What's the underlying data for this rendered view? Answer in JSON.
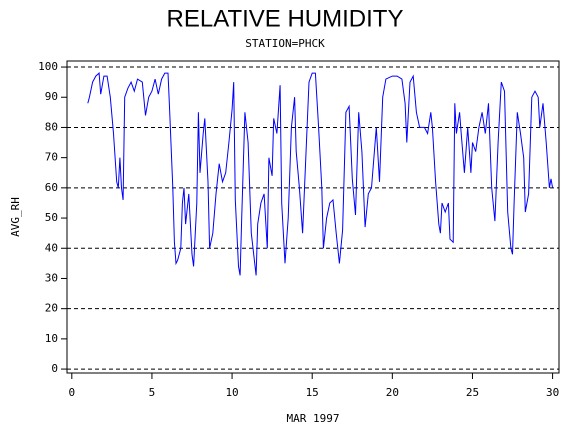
{
  "chart_data": {
    "type": "line",
    "title": "RELATIVE HUMIDITY",
    "subtitle": "STATION=PHCK",
    "x_label": "MAR 1997",
    "y_label": "AVG_RH",
    "xlim": [
      -0.3,
      30.4
    ],
    "ylim": [
      -1.3,
      102
    ],
    "xticks": [
      0,
      5,
      10,
      15,
      20,
      25,
      30
    ],
    "yticks": [
      0,
      10,
      20,
      30,
      40,
      50,
      60,
      70,
      80,
      90,
      100
    ],
    "ygrid": [
      0,
      20,
      40,
      60,
      80,
      100
    ],
    "x": [
      1.0,
      1.1,
      1.3,
      1.5,
      1.7,
      1.8,
      2.0,
      2.2,
      2.4,
      2.6,
      2.8,
      2.9,
      3.0,
      3.1,
      3.2,
      3.3,
      3.5,
      3.7,
      3.9,
      4.1,
      4.4,
      4.6,
      4.8,
      5.0,
      5.2,
      5.4,
      5.6,
      5.8,
      6.0,
      6.1,
      6.3,
      6.4,
      6.5,
      6.6,
      6.8,
      6.9,
      7.0,
      7.1,
      7.3,
      7.5,
      7.6,
      7.8,
      7.9,
      8.0,
      8.2,
      8.3,
      8.5,
      8.6,
      8.8,
      9.0,
      9.2,
      9.4,
      9.6,
      9.8,
      10.0,
      10.1,
      10.2,
      10.4,
      10.5,
      10.6,
      10.8,
      11.0,
      11.2,
      11.5,
      11.6,
      11.8,
      12.0,
      12.2,
      12.3,
      12.5,
      12.6,
      12.8,
      13.0,
      13.1,
      13.3,
      13.5,
      13.7,
      13.9,
      14.0,
      14.2,
      14.4,
      14.6,
      14.8,
      15.0,
      15.2,
      15.4,
      15.6,
      15.7,
      15.9,
      16.1,
      16.3,
      16.5,
      16.7,
      16.9,
      17.1,
      17.3,
      17.5,
      17.7,
      17.9,
      18.1,
      18.3,
      18.5,
      18.7,
      19.0,
      19.2,
      19.4,
      19.6,
      20.0,
      20.3,
      20.6,
      20.8,
      20.9,
      21.1,
      21.3,
      21.5,
      21.7,
      22.0,
      22.2,
      22.4,
      22.5,
      22.7,
      22.9,
      23.0,
      23.1,
      23.3,
      23.5,
      23.6,
      23.8,
      23.9,
      24.0,
      24.2,
      24.3,
      24.5,
      24.7,
      24.9,
      25.0,
      25.2,
      25.4,
      25.6,
      25.8,
      26.0,
      26.2,
      26.4,
      26.6,
      26.8,
      27.0,
      27.2,
      27.4,
      27.5,
      27.6,
      27.8,
      28.0,
      28.2,
      28.3,
      28.5,
      28.7,
      28.9,
      29.1,
      29.2,
      29.4,
      29.6,
      29.8,
      29.9,
      30.0
    ],
    "series": [
      {
        "color": "#0000ff",
        "values": [
          88,
          90,
          95,
          97,
          98,
          91,
          97,
          97,
          90,
          78,
          62,
          60,
          70,
          60,
          56,
          90,
          93,
          95,
          92,
          96,
          95,
          84,
          90,
          92,
          96,
          91,
          96,
          98,
          98,
          86,
          60,
          42,
          35,
          36,
          40,
          55,
          60,
          48,
          58,
          38,
          34,
          55,
          85,
          65,
          78,
          83,
          62,
          40,
          45,
          58,
          68,
          62,
          65,
          75,
          86,
          95,
          56,
          34,
          31,
          50,
          85,
          75,
          45,
          31,
          48,
          55,
          58,
          40,
          70,
          64,
          83,
          78,
          94,
          55,
          35,
          50,
          80,
          90,
          72,
          60,
          45,
          70,
          95,
          98,
          98,
          80,
          60,
          40,
          50,
          55,
          56,
          45,
          35,
          46,
          85,
          87,
          63,
          51,
          85,
          72,
          47,
          58,
          60,
          80,
          62,
          90,
          96,
          97,
          97,
          96,
          88,
          75,
          95,
          97,
          85,
          80,
          80,
          78,
          85,
          80,
          62,
          48,
          45,
          55,
          52,
          55,
          43,
          42,
          88,
          78,
          85,
          78,
          65,
          80,
          65,
          75,
          72,
          80,
          85,
          78,
          88,
          60,
          49,
          75,
          95,
          92,
          52,
          40,
          38,
          55,
          85,
          78,
          70,
          52,
          58,
          90,
          92,
          90,
          80,
          88,
          75,
          60,
          63,
          60
        ]
      }
    ]
  }
}
